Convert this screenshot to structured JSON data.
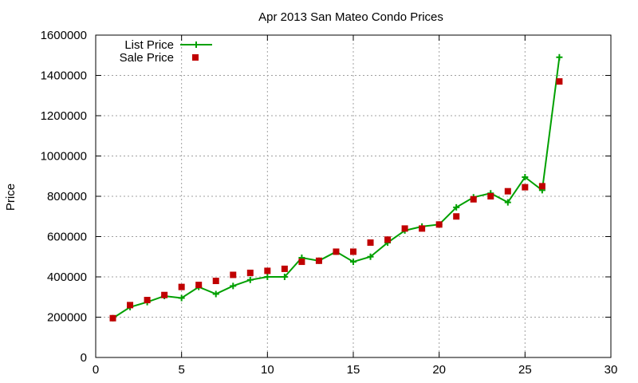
{
  "chart_data": {
    "type": "line",
    "title": "Apr 2013 San Mateo Condo Prices",
    "xlabel": "",
    "ylabel": "Price",
    "xlim": [
      0,
      30
    ],
    "ylim": [
      0,
      1600000
    ],
    "x_ticks": [
      0,
      5,
      10,
      15,
      20,
      25,
      30
    ],
    "y_ticks": [
      0,
      200000,
      400000,
      600000,
      800000,
      1000000,
      1200000,
      1400000,
      1600000
    ],
    "grid": true,
    "legend_position": "top-left",
    "series": [
      {
        "name": "List Price",
        "style": "line+plus",
        "color": "#00a000",
        "x": [
          1,
          2,
          3,
          4,
          5,
          6,
          7,
          8,
          9,
          10,
          11,
          12,
          13,
          14,
          15,
          16,
          17,
          18,
          19,
          20,
          21,
          22,
          23,
          24,
          25,
          26,
          27
        ],
        "y": [
          195000,
          250000,
          275000,
          305000,
          295000,
          350000,
          315000,
          355000,
          385000,
          400000,
          400000,
          495000,
          480000,
          525000,
          475000,
          500000,
          570000,
          630000,
          650000,
          660000,
          745000,
          795000,
          815000,
          770000,
          895000,
          830000,
          1490000
        ]
      },
      {
        "name": "Sale Price",
        "style": "square-markers",
        "color": "#c00000",
        "x": [
          1,
          2,
          3,
          4,
          5,
          6,
          7,
          8,
          9,
          10,
          11,
          12,
          13,
          14,
          15,
          16,
          17,
          18,
          19,
          20,
          21,
          22,
          23,
          24,
          25,
          26,
          27
        ],
        "y": [
          195000,
          260000,
          285000,
          310000,
          350000,
          360000,
          380000,
          410000,
          420000,
          430000,
          440000,
          475000,
          480000,
          525000,
          525000,
          570000,
          585000,
          640000,
          640000,
          660000,
          700000,
          785000,
          800000,
          825000,
          845000,
          850000,
          1370000
        ]
      }
    ]
  }
}
